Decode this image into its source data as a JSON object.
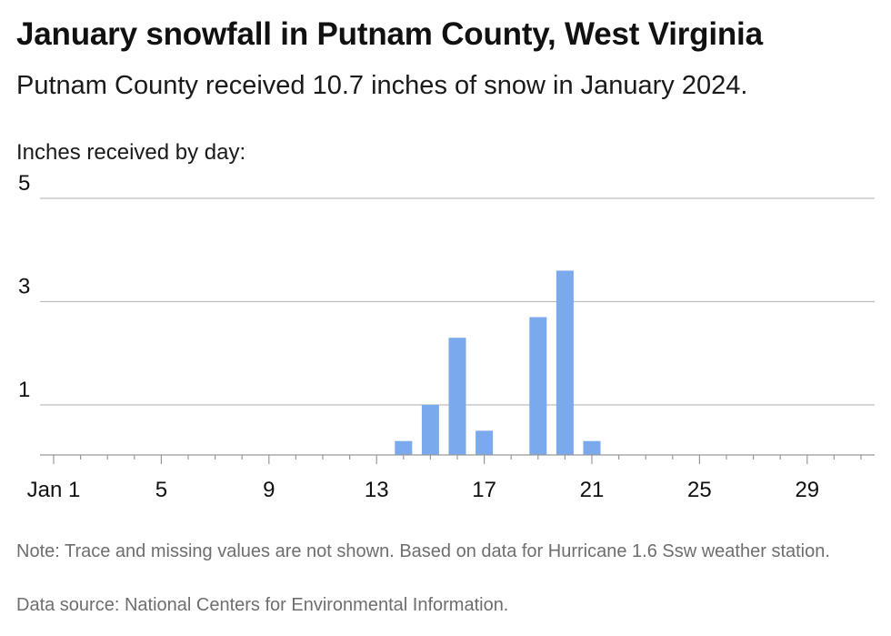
{
  "title": "January snowfall in Putnam County, West Virginia",
  "subtitle": "Putnam County received 10.7 inches of snow in January 2024.",
  "note": "Note: Trace and missing values are not shown. Based on data for Hurricane 1.6 Ssw weather station.",
  "source": "Data source: National Centers for Environmental Information.",
  "colors": {
    "bar": "#7aaaed",
    "grid": "#bdbdbd",
    "axis": "#999999"
  },
  "chart_data": {
    "type": "bar",
    "title": "January snowfall in Putnam County, West Virginia",
    "subtitle": "Putnam County received 10.7 inches of snow in January 2024.",
    "ylabel": "Inches received by day:",
    "xlabel": "",
    "ylim": [
      0,
      5
    ],
    "xlim": [
      1,
      31
    ],
    "y_ticks": [
      1,
      3,
      5
    ],
    "x_ticks": [
      1,
      5,
      9,
      13,
      17,
      21,
      25,
      29
    ],
    "x_tick_labels": [
      "Jan 1",
      "5",
      "9",
      "13",
      "17",
      "21",
      "25",
      "29"
    ],
    "grid": true,
    "x": [
      14,
      15,
      16,
      17,
      19,
      20,
      21
    ],
    "values": [
      0.3,
      1.0,
      2.3,
      0.5,
      2.7,
      3.6,
      0.3
    ]
  }
}
